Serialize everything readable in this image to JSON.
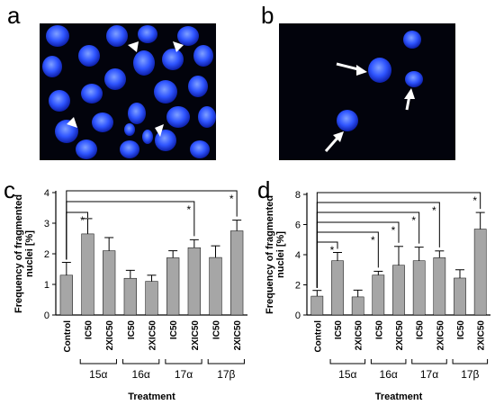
{
  "panels": {
    "a": {
      "letter": "a"
    },
    "b": {
      "letter": "b"
    },
    "c": {
      "letter": "c"
    },
    "d": {
      "letter": "d"
    }
  },
  "colors": {
    "bar": "#a6a6a6",
    "nucleus": "#2a4fff",
    "background": "#02030c"
  },
  "chart_data": [
    {
      "panel": "c",
      "type": "bar",
      "ylabel": "Frequency of fragmented nuclei [%]",
      "xlabel": "Treatment",
      "ylim": [
        0,
        4
      ],
      "yticks": [
        "0",
        "1",
        "2",
        "3",
        "4"
      ],
      "categories": [
        "Control",
        "IC50",
        "2XIC50",
        "IC50",
        "2XIC50",
        "IC50",
        "2XIC50",
        "IC50",
        "2XIC50"
      ],
      "values": [
        1.3,
        2.65,
        2.1,
        1.2,
        1.1,
        1.87,
        2.2,
        1.88,
        2.75
      ],
      "errors": [
        0.42,
        0.5,
        0.43,
        0.26,
        0.2,
        0.23,
        0.26,
        0.38,
        0.35
      ],
      "groups": [
        {
          "label": "15α",
          "from": 1,
          "to": 2
        },
        {
          "label": "16α",
          "from": 3,
          "to": 4
        },
        {
          "label": "17α",
          "from": 5,
          "to": 6
        },
        {
          "label": "17β",
          "from": 7,
          "to": 8
        }
      ],
      "significance": [
        {
          "from": 0,
          "to": 1,
          "star": "*",
          "level": 1
        },
        {
          "from": 0,
          "to": 6,
          "star": "*",
          "level": 2
        },
        {
          "from": 0,
          "to": 8,
          "star": "*",
          "level": 3
        }
      ]
    },
    {
      "panel": "d",
      "type": "bar",
      "ylabel": "Frequency of fragmented nuclei [%]",
      "xlabel": "Treatment",
      "ylim": [
        0,
        8
      ],
      "yticks": [
        "0",
        "2",
        "4",
        "6",
        "8"
      ],
      "categories": [
        "Control",
        "IC50",
        "2XIC50",
        "IC50",
        "2XIC50",
        "IC50",
        "2XIC50",
        "IC50",
        "2XIC50"
      ],
      "values": [
        1.25,
        3.6,
        1.2,
        2.65,
        3.3,
        3.6,
        3.8,
        2.45,
        5.7
      ],
      "errors": [
        0.38,
        0.55,
        0.45,
        0.25,
        1.25,
        0.9,
        0.45,
        0.55,
        1.1
      ],
      "groups": [
        {
          "label": "15α",
          "from": 1,
          "to": 2
        },
        {
          "label": "16α",
          "from": 3,
          "to": 4
        },
        {
          "label": "17α",
          "from": 5,
          "to": 6
        },
        {
          "label": "17β",
          "from": 7,
          "to": 8
        }
      ],
      "significance": [
        {
          "from": 0,
          "to": 1,
          "star": "*",
          "level": 1
        },
        {
          "from": 0,
          "to": 3,
          "star": "*",
          "level": 2
        },
        {
          "from": 0,
          "to": 4,
          "star": "*",
          "level": 3
        },
        {
          "from": 0,
          "to": 5,
          "star": "*",
          "level": 4
        },
        {
          "from": 0,
          "to": 6,
          "star": "*",
          "level": 5
        },
        {
          "from": 0,
          "to": 8,
          "star": "*",
          "level": 6
        }
      ]
    }
  ]
}
